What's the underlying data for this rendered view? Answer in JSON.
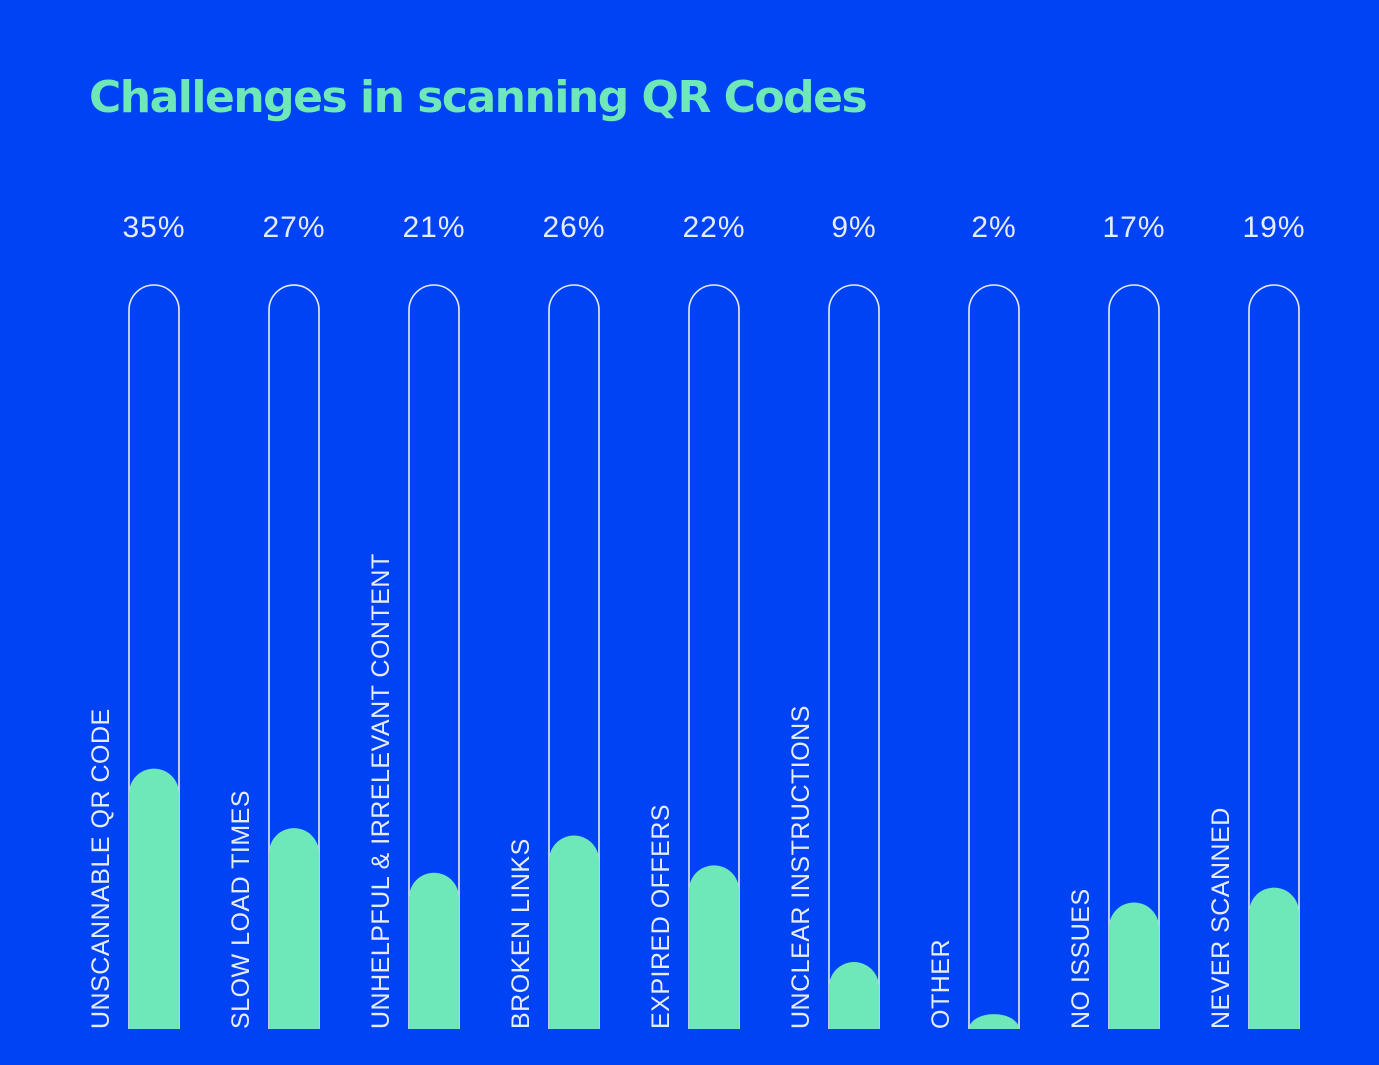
{
  "colors": {
    "background": "#0043F5",
    "accent": "#6FE8B9",
    "outline": "#E6ECFF",
    "text": "#E6ECFF"
  },
  "chart_data": {
    "type": "bar",
    "title": "Challenges in scanning QR Codes",
    "categories": [
      "UNSCANNABLE QR CODE",
      "SLOW LOAD TIMES",
      "UNHELPFUL & IRRELEVANT CONTENT",
      "BROKEN LINKS",
      "EXPIRED OFFERS",
      "UNCLEAR INSTRUCTIONS",
      "OTHER",
      "NO ISSUES",
      "NEVER SCANNED"
    ],
    "values": [
      35,
      27,
      21,
      26,
      22,
      9,
      2,
      17,
      19
    ],
    "value_labels": [
      "35%",
      "27%",
      "21%",
      "26%",
      "22%",
      "9%",
      "2%",
      "17%",
      "19%"
    ],
    "ylim": [
      0,
      100
    ],
    "orientation": "vertical",
    "grid": false,
    "legend": "none"
  }
}
